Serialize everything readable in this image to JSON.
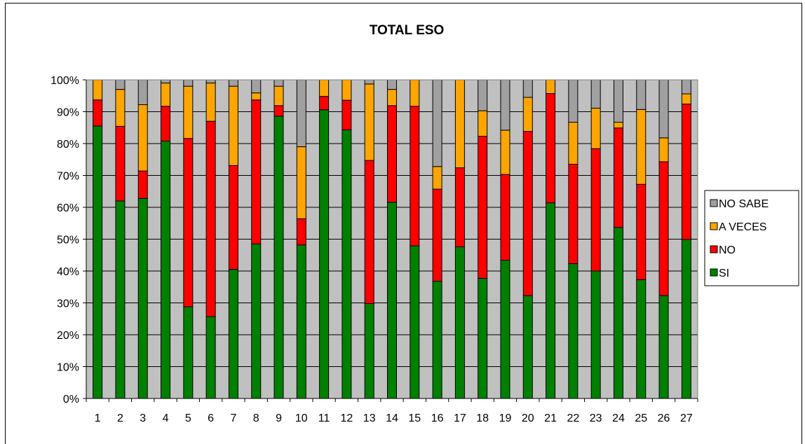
{
  "chart_data": {
    "type": "bar",
    "stacked": true,
    "percent": true,
    "title": "TOTAL ESO",
    "xlabel": "",
    "ylabel": "",
    "ylim": [
      0,
      100
    ],
    "yticks": [
      "0%",
      "10%",
      "20%",
      "30%",
      "40%",
      "50%",
      "60%",
      "70%",
      "80%",
      "90%",
      "100%"
    ],
    "categories": [
      "1",
      "2",
      "3",
      "4",
      "5",
      "6",
      "7",
      "8",
      "9",
      "10",
      "11",
      "12",
      "13",
      "14",
      "15",
      "16",
      "17",
      "18",
      "19",
      "20",
      "21",
      "22",
      "23",
      "24",
      "25",
      "26",
      "27"
    ],
    "grid": "horizontal",
    "plot_background": "#c0c0c0",
    "legend_position": "right",
    "legend_order": [
      "NO SABE",
      "A VECES",
      "NO",
      "SI"
    ],
    "series": [
      {
        "name": "SI",
        "color": "#008000",
        "values": [
          85.5,
          62,
          62.8,
          80.8,
          28.8,
          25.7,
          40.5,
          48.5,
          88.6,
          48.2,
          90.6,
          84.3,
          29.8,
          61.6,
          47.9,
          36.8,
          47.6,
          37.7,
          43.4,
          32.3,
          61.4,
          42.3,
          40,
          53.7,
          37.3,
          32.3,
          49.9
        ]
      },
      {
        "name": "NO",
        "color": "#ff0000",
        "values": [
          8.2,
          23.4,
          8.6,
          10.9,
          52.8,
          61.3,
          32.6,
          45.2,
          3.3,
          8.2,
          4.2,
          9.3,
          44.9,
          30.3,
          43.8,
          28.9,
          24.8,
          44.6,
          26.9,
          51.5,
          34.3,
          31.2,
          38.4,
          31.2,
          29.9,
          42,
          42.5
        ]
      },
      {
        "name": "A VECES",
        "color": "#ffa500",
        "values": [
          6.3,
          11.6,
          20.8,
          7.3,
          16.4,
          12,
          24.9,
          2.2,
          6.1,
          22.6,
          5.2,
          6.4,
          24,
          5.1,
          8.3,
          7.1,
          27.6,
          8,
          13.9,
          10.7,
          4.3,
          13.2,
          12.7,
          1.8,
          23.5,
          7.5,
          3.2
        ]
      },
      {
        "name": "NO SABE",
        "color": "#a0a0a0",
        "values": [
          0,
          3,
          7.8,
          1,
          2,
          1,
          2,
          4.1,
          2,
          21,
          0,
          0,
          1.3,
          3,
          0,
          27.2,
          0,
          9.7,
          15.8,
          5.5,
          0,
          13.3,
          8.9,
          13.3,
          9.3,
          18.2,
          4.4
        ]
      }
    ]
  }
}
